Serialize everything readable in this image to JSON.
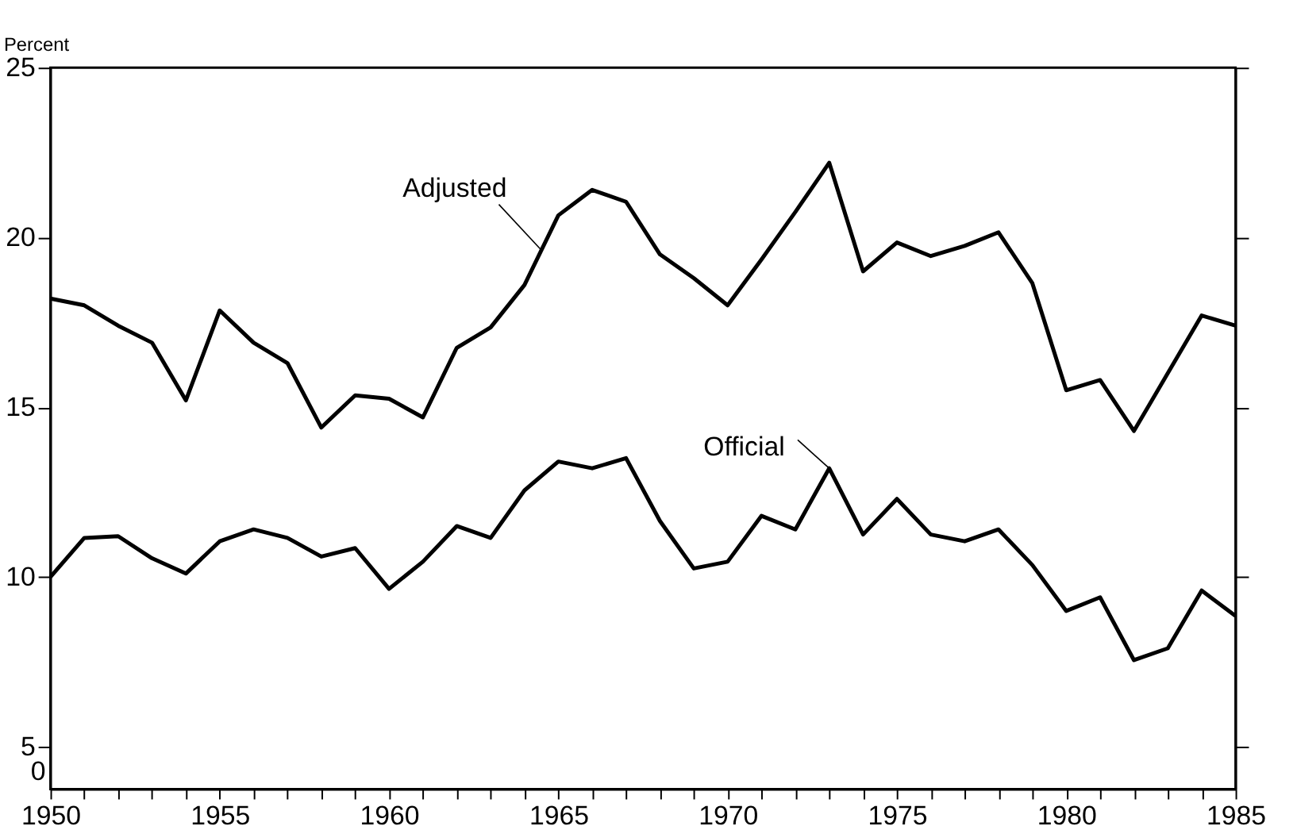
{
  "chart_data": {
    "type": "line",
    "ylabel": "Percent",
    "x": [
      1950,
      1951,
      1952,
      1953,
      1954,
      1955,
      1956,
      1957,
      1958,
      1959,
      1960,
      1961,
      1962,
      1963,
      1964,
      1965,
      1966,
      1967,
      1968,
      1969,
      1970,
      1971,
      1972,
      1973,
      1974,
      1975,
      1976,
      1977,
      1978,
      1979,
      1980,
      1981,
      1982,
      1983,
      1984,
      1985
    ],
    "series": [
      {
        "name": "Adjusted",
        "color": "#000000",
        "values": [
          18.2,
          18.0,
          17.4,
          16.9,
          15.2,
          17.85,
          16.9,
          16.3,
          14.4,
          15.35,
          15.25,
          14.7,
          16.75,
          17.35,
          18.6,
          20.65,
          21.4,
          21.05,
          19.5,
          18.8,
          18.0,
          19.35,
          20.75,
          22.2,
          19.0,
          19.85,
          19.45,
          19.75,
          20.15,
          18.65,
          15.5,
          15.8,
          14.3,
          16.0,
          17.7,
          17.4
        ]
      },
      {
        "name": "Official",
        "color": "#000000",
        "values": [
          10.0,
          11.15,
          11.2,
          10.55,
          10.1,
          11.05,
          11.4,
          11.15,
          10.6,
          10.85,
          9.65,
          10.45,
          11.5,
          11.15,
          12.55,
          13.4,
          13.2,
          13.5,
          11.65,
          10.25,
          10.45,
          11.8,
          11.4,
          13.2,
          11.25,
          12.3,
          11.25,
          11.05,
          11.4,
          10.35,
          9.0,
          9.4,
          7.55,
          7.9,
          9.6,
          8.85
        ]
      }
    ],
    "xlim": [
      1950,
      1985
    ],
    "xticks": [
      1950,
      {
        "value": 1951,
        "label": null
      },
      {
        "value": 1952,
        "label": null
      },
      {
        "value": 1953,
        "label": null
      },
      {
        "value": 1954,
        "label": null
      },
      1955,
      {
        "value": 1956,
        "label": null
      },
      {
        "value": 1957,
        "label": null
      },
      {
        "value": 1958,
        "label": null
      },
      {
        "value": 1959,
        "label": null
      },
      1960,
      {
        "value": 1961,
        "label": null
      },
      {
        "value": 1962,
        "label": null
      },
      {
        "value": 1963,
        "label": null
      },
      {
        "value": 1964,
        "label": null
      },
      1965,
      {
        "value": 1966,
        "label": null
      },
      {
        "value": 1967,
        "label": null
      },
      {
        "value": 1968,
        "label": null
      },
      {
        "value": 1969,
        "label": null
      },
      1970,
      {
        "value": 1971,
        "label": null
      },
      {
        "value": 1972,
        "label": null
      },
      {
        "value": 1973,
        "label": null
      },
      {
        "value": 1974,
        "label": null
      },
      1975,
      {
        "value": 1976,
        "label": null
      },
      {
        "value": 1977,
        "label": null
      },
      {
        "value": 1978,
        "label": null
      },
      {
        "value": 1979,
        "label": null
      },
      1980,
      {
        "value": 1981,
        "label": null
      },
      {
        "value": 1982,
        "label": null
      },
      {
        "value": 1983,
        "label": null
      },
      {
        "value": 1984,
        "label": null
      },
      1985
    ],
    "ylim": [
      3.75,
      25
    ],
    "yticks": [
      5,
      10,
      15,
      20,
      25
    ],
    "annotations": [
      "0"
    ],
    "grid": false,
    "marker": "none",
    "line_style": "solid"
  }
}
